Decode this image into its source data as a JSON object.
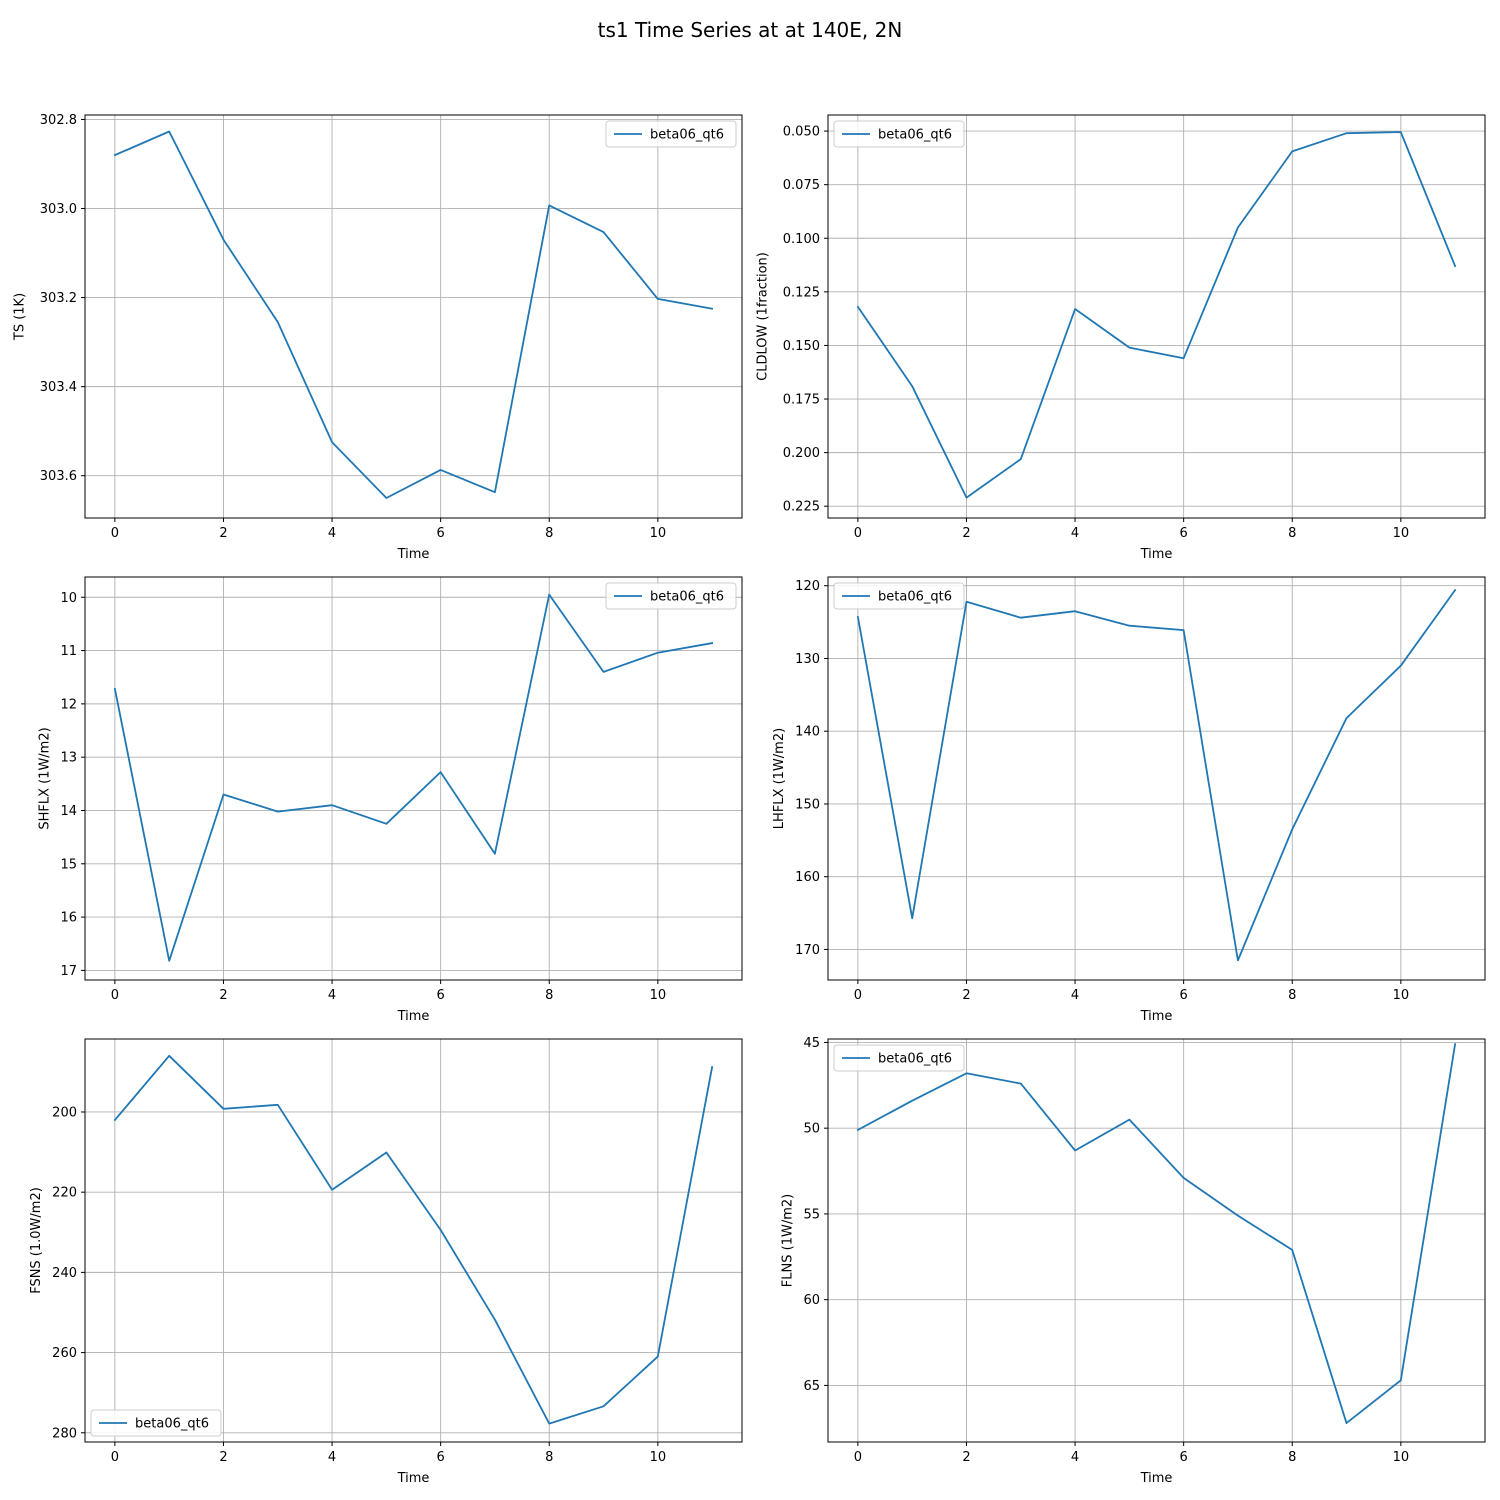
{
  "figure": {
    "title": "ts1 Time Series at at 140E, 2N"
  },
  "chart_data": [
    {
      "type": "line",
      "xlabel": "Time",
      "ylabel": "TS (1K)",
      "y_inverted": true,
      "xlim": [
        -0.55,
        11.55
      ],
      "ylim": [
        302.79,
        303.695
      ],
      "xticks": [
        0,
        2,
        4,
        6,
        8,
        10
      ],
      "xtick_labels": [
        "0",
        "2",
        "4",
        "6",
        "8",
        "10"
      ],
      "yticks": [
        302.8,
        303.0,
        303.2,
        303.4,
        303.6
      ],
      "ytick_labels": [
        "302.8",
        "303.0",
        "303.2",
        "303.4",
        "303.6"
      ],
      "grid": true,
      "legend_position": "top-right",
      "color": "#1f77b4",
      "series": [
        {
          "name": "beta06_qt6",
          "x": [
            0,
            1,
            2,
            3,
            4,
            5,
            6,
            7,
            8,
            9,
            10,
            11
          ],
          "values": [
            302.88,
            302.827,
            303.07,
            303.255,
            303.525,
            303.65,
            303.587,
            303.637,
            302.993,
            303.053,
            303.203,
            303.225
          ]
        }
      ]
    },
    {
      "type": "line",
      "xlabel": "Time",
      "ylabel": "CLDLOW (1fraction)",
      "y_inverted": true,
      "xlim": [
        -0.55,
        11.55
      ],
      "ylim": [
        0.0425,
        0.2305
      ],
      "xticks": [
        0,
        2,
        4,
        6,
        8,
        10
      ],
      "xtick_labels": [
        "0",
        "2",
        "4",
        "6",
        "8",
        "10"
      ],
      "yticks": [
        0.05,
        0.075,
        0.1,
        0.125,
        0.15,
        0.175,
        0.2,
        0.225
      ],
      "ytick_labels": [
        "0.050",
        "0.075",
        "0.100",
        "0.125",
        "0.150",
        "0.175",
        "0.200",
        "0.225"
      ],
      "grid": true,
      "legend_position": "top-left",
      "color": "#1f77b4",
      "series": [
        {
          "name": "beta06_qt6",
          "x": [
            0,
            1,
            2,
            3,
            4,
            5,
            6,
            7,
            8,
            9,
            10,
            11
          ],
          "values": [
            0.132,
            0.169,
            0.221,
            0.203,
            0.133,
            0.151,
            0.156,
            0.095,
            0.0595,
            0.051,
            0.0505,
            0.113
          ]
        }
      ]
    },
    {
      "type": "line",
      "xlabel": "Time",
      "ylabel": "SHFLX (1W/m2)",
      "y_inverted": true,
      "xlim": [
        -0.55,
        11.55
      ],
      "ylim": [
        9.62,
        17.18
      ],
      "xticks": [
        0,
        2,
        4,
        6,
        8,
        10
      ],
      "xtick_labels": [
        "0",
        "2",
        "4",
        "6",
        "8",
        "10"
      ],
      "yticks": [
        10,
        11,
        12,
        13,
        14,
        15,
        16,
        17
      ],
      "ytick_labels": [
        "10",
        "11",
        "12",
        "13",
        "14",
        "15",
        "16",
        "17"
      ],
      "grid": true,
      "legend_position": "top-right",
      "color": "#1f77b4",
      "series": [
        {
          "name": "beta06_qt6",
          "x": [
            0,
            1,
            2,
            3,
            4,
            5,
            6,
            7,
            8,
            9,
            10,
            11
          ],
          "values": [
            11.72,
            16.82,
            13.7,
            14.02,
            13.9,
            14.25,
            13.28,
            14.81,
            9.95,
            11.4,
            11.04,
            10.86
          ]
        }
      ]
    },
    {
      "type": "line",
      "xlabel": "Time",
      "ylabel": "LHFLX (1W/m2)",
      "y_inverted": true,
      "xlim": [
        -0.55,
        11.55
      ],
      "ylim": [
        118.8,
        174.2
      ],
      "xticks": [
        0,
        2,
        4,
        6,
        8,
        10
      ],
      "xtick_labels": [
        "0",
        "2",
        "4",
        "6",
        "8",
        "10"
      ],
      "yticks": [
        120,
        130,
        140,
        150,
        160,
        170
      ],
      "ytick_labels": [
        "120",
        "130",
        "140",
        "150",
        "160",
        "170"
      ],
      "grid": true,
      "legend_position": "top-left",
      "color": "#1f77b4",
      "series": [
        {
          "name": "beta06_qt6",
          "x": [
            0,
            1,
            2,
            3,
            4,
            5,
            6,
            7,
            8,
            9,
            10,
            11
          ],
          "values": [
            124.3,
            165.7,
            122.2,
            124.4,
            123.5,
            125.5,
            126.1,
            171.5,
            153.5,
            138.2,
            131.0,
            120.6
          ]
        }
      ]
    },
    {
      "type": "line",
      "xlabel": "Time",
      "ylabel": "FSNS (1.0W/m2)",
      "y_inverted": true,
      "xlim": [
        -0.55,
        11.55
      ],
      "ylim": [
        181.8,
        282.3
      ],
      "xticks": [
        0,
        2,
        4,
        6,
        8,
        10
      ],
      "xtick_labels": [
        "0",
        "2",
        "4",
        "6",
        "8",
        "10"
      ],
      "yticks": [
        200,
        220,
        240,
        260,
        280
      ],
      "ytick_labels": [
        "200",
        "220",
        "240",
        "260",
        "280"
      ],
      "grid": true,
      "legend_position": "bottom-left",
      "color": "#1f77b4",
      "series": [
        {
          "name": "beta06_qt6",
          "x": [
            0,
            1,
            2,
            3,
            4,
            5,
            6,
            7,
            8,
            9,
            10,
            11
          ],
          "values": [
            202.0,
            186.0,
            199.2,
            198.2,
            219.4,
            210.1,
            229.4,
            251.8,
            277.7,
            273.4,
            261.0,
            188.8
          ]
        }
      ]
    },
    {
      "type": "line",
      "xlabel": "Time",
      "ylabel": "FLNS (1W/m2)",
      "y_inverted": true,
      "xlim": [
        -0.55,
        11.55
      ],
      "ylim": [
        44.8,
        68.3
      ],
      "xticks": [
        0,
        2,
        4,
        6,
        8,
        10
      ],
      "xtick_labels": [
        "0",
        "2",
        "4",
        "6",
        "8",
        "10"
      ],
      "yticks": [
        45,
        50,
        55,
        60,
        65
      ],
      "ytick_labels": [
        "45",
        "50",
        "55",
        "60",
        "65"
      ],
      "grid": true,
      "legend_position": "top-left",
      "color": "#1f77b4",
      "series": [
        {
          "name": "beta06_qt6",
          "x": [
            0,
            1,
            2,
            3,
            4,
            5,
            6,
            7,
            8,
            9,
            10,
            11
          ],
          "values": [
            50.1,
            48.4,
            46.8,
            47.4,
            51.3,
            49.5,
            52.9,
            55.1,
            57.1,
            67.2,
            64.7,
            45.1
          ]
        }
      ]
    }
  ]
}
